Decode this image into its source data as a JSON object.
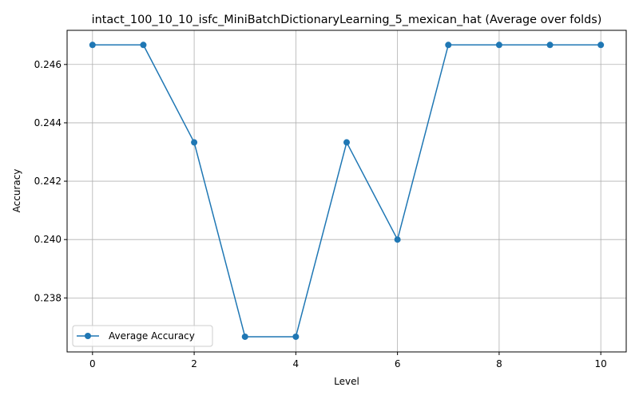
{
  "chart_data": {
    "type": "line",
    "title": "intact_100_10_10_isfc_MiniBatchDictionaryLearning_5_mexican_hat (Average over folds)",
    "xlabel": "Level",
    "ylabel": "Accuracy",
    "xlim": [
      -0.5,
      10.5
    ],
    "ylim": [
      0.23615,
      0.24717
    ],
    "xticks": [
      0,
      2,
      4,
      6,
      8,
      10
    ],
    "xtick_labels": [
      "0",
      "2",
      "4",
      "6",
      "8",
      "10"
    ],
    "yticks": [
      0.238,
      0.24,
      0.242,
      0.244,
      0.246
    ],
    "ytick_labels": [
      "0.238",
      "0.240",
      "0.242",
      "0.244",
      "0.246"
    ],
    "grid": true,
    "legend_position": "lower-left",
    "x": [
      0,
      1,
      2,
      3,
      4,
      5,
      6,
      7,
      8,
      9,
      10
    ],
    "series": [
      {
        "name": "Average Accuracy",
        "color": "#1f77b4",
        "marker": "circle",
        "values": [
          0.24667,
          0.24667,
          0.24333,
          0.23667,
          0.23667,
          0.24333,
          0.24,
          0.24667,
          0.24667,
          0.24667,
          0.24667
        ]
      }
    ]
  }
}
